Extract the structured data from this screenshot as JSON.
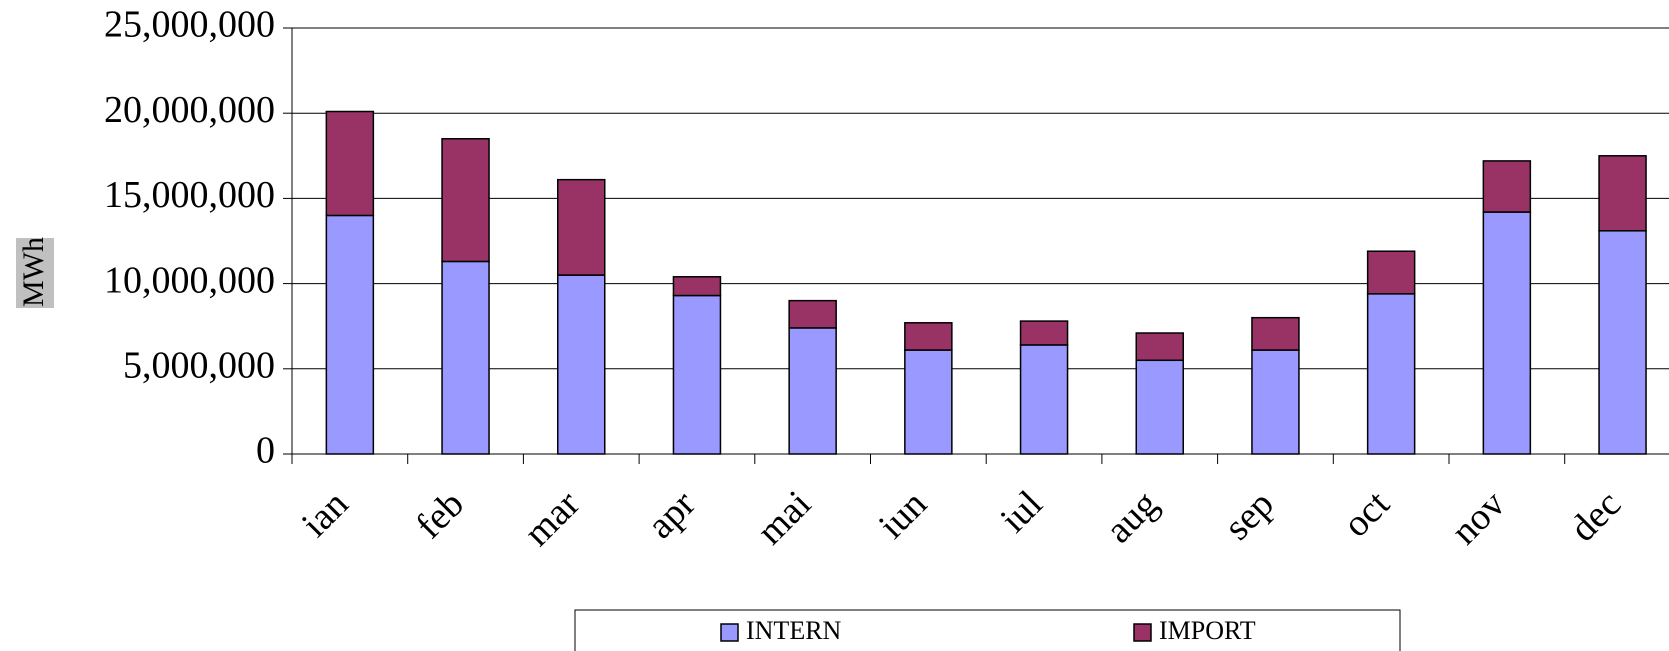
{
  "chart_data": {
    "type": "bar",
    "stacked": true,
    "y_label": "MWh",
    "categories": [
      "ian",
      "feb",
      "mar",
      "apr",
      "mai",
      "iun",
      "iul",
      "aug",
      "sep",
      "oct",
      "nov",
      "dec"
    ],
    "series": [
      {
        "name": "INTERN",
        "color": "#9999ff",
        "values": [
          14000000,
          11300000,
          10500000,
          9300000,
          7400000,
          6100000,
          6400000,
          5500000,
          6100000,
          9400000,
          14200000,
          13100000
        ]
      },
      {
        "name": "IMPORT",
        "color": "#993366",
        "values": [
          6100000,
          7200000,
          5600000,
          1100000,
          1600000,
          1600000,
          1400000,
          1600000,
          1900000,
          2500000,
          3000000,
          4400000
        ]
      }
    ],
    "ylim": [
      0,
      25000000
    ],
    "yticks": [
      0,
      {
        "value": 5000000,
        "label": "5,000,000"
      },
      {
        "value": 10000000,
        "label": "10,000,000"
      },
      {
        "value": 15000000,
        "label": "15,000,000"
      },
      {
        "value": 20000000,
        "label": "20,000,000"
      },
      {
        "value": 25000000,
        "label": "25,000,000"
      }
    ],
    "grid": true,
    "legend": "bottom"
  }
}
